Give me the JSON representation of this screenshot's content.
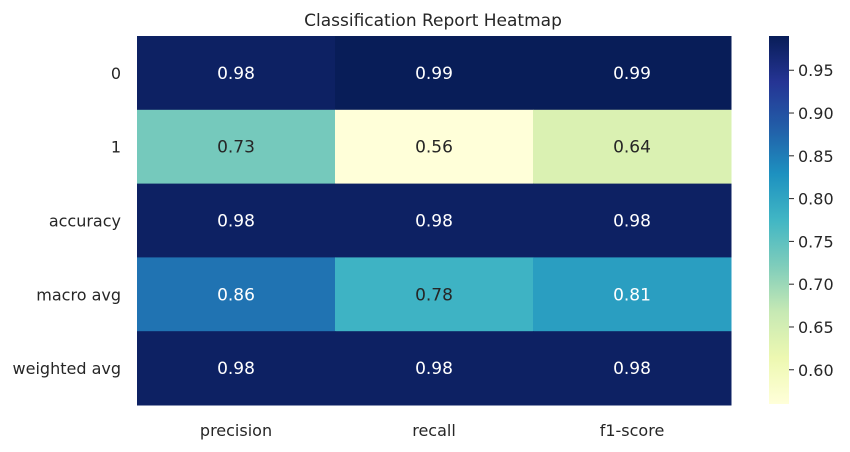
{
  "chart_data": {
    "type": "heatmap",
    "title": "Classification Report Heatmap",
    "xlabel": "",
    "ylabel": "",
    "columns": [
      "precision",
      "recall",
      "f1-score"
    ],
    "rows": [
      "0",
      "1",
      "accuracy",
      "macro avg",
      "weighted avg"
    ],
    "values": [
      [
        0.98,
        0.99,
        0.99
      ],
      [
        0.73,
        0.56,
        0.64
      ],
      [
        0.98,
        0.98,
        0.98
      ],
      [
        0.86,
        0.78,
        0.81
      ],
      [
        0.98,
        0.98,
        0.98
      ]
    ],
    "value_format": "2 decimals",
    "colormap": "YlGnBu",
    "color_range": [
      0.56,
      0.99
    ],
    "colorbar": {
      "ticks": [
        "0.60",
        "0.65",
        "0.70",
        "0.75",
        "0.80",
        "0.85",
        "0.90",
        "0.95"
      ],
      "tick_values": [
        0.6,
        0.65,
        0.7,
        0.75,
        0.8,
        0.85,
        0.9,
        0.95
      ]
    },
    "colormap_stops": [
      "#ffffd9",
      "#edf8b1",
      "#c7e9b4",
      "#7fcdbb",
      "#41b6c4",
      "#1d91c0",
      "#225ea8",
      "#253494",
      "#081d58"
    ],
    "annotation_colors": {
      "light": "#ffffff",
      "dark": "#262626"
    },
    "grid": false,
    "legend": "colorbar-right"
  }
}
